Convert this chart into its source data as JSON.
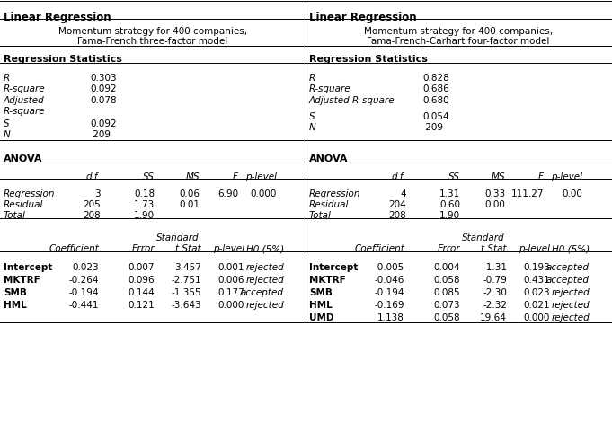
{
  "title_left": "Linear Regression",
  "title_right": "Linear Regression",
  "subtitle_left": "Momentum strategy for 400 companies,\nFama-French three-factor model",
  "subtitle_right": "Momentum strategy for 400 companies,\nFama-French-Carhart four-factor model",
  "reg_stats_header": "Regression Statistics",
  "anova_header": "ANOVA",
  "anova_col_headers": [
    "",
    "d.f.",
    "SS",
    "MS",
    "F",
    "p-level"
  ],
  "left_anova": [
    [
      "Regression",
      "3",
      "0.18",
      "0.06",
      "6.90",
      "0.000"
    ],
    [
      "Residual",
      "205",
      "1.73",
      "0.01",
      "",
      ""
    ],
    [
      "Total",
      "208",
      "1.90",
      "",
      "",
      ""
    ]
  ],
  "right_anova": [
    [
      "Regression",
      "4",
      "1.31",
      "0.33",
      "111.27",
      "0.00"
    ],
    [
      "Residual",
      "204",
      "0.60",
      "0.00",
      "",
      ""
    ],
    [
      "Total",
      "208",
      "1.90",
      "",
      "",
      ""
    ]
  ],
  "left_coef": [
    [
      "Intercept",
      "0.023",
      "0.007",
      "3.457",
      "0.001",
      "rejected"
    ],
    [
      "MKTRF",
      "-0.264",
      "0.096",
      "-2.751",
      "0.006",
      "rejected"
    ],
    [
      "SMB",
      "-0.194",
      "0.144",
      "-1.355",
      "0.177",
      "accepted"
    ],
    [
      "HML",
      "-0.441",
      "0.121",
      "-3.643",
      "0.000",
      "rejected"
    ]
  ],
  "right_coef": [
    [
      "Intercept",
      "-0.005",
      "0.004",
      "-1.31",
      "0.193",
      "accepted"
    ],
    [
      "MKTRF",
      "-0.046",
      "0.058",
      "-0.79",
      "0.431",
      "accepted"
    ],
    [
      "SMB",
      "-0.194",
      "0.085",
      "-2.30",
      "0.023",
      "rejected"
    ],
    [
      "HML",
      "-0.169",
      "0.073",
      "-2.32",
      "0.021",
      "rejected"
    ],
    [
      "UMD",
      "1.138",
      "0.058",
      "19.64",
      "0.000",
      "rejected"
    ]
  ],
  "bg_color": "#ffffff",
  "text_color": "#000000",
  "line_color": "#000000"
}
